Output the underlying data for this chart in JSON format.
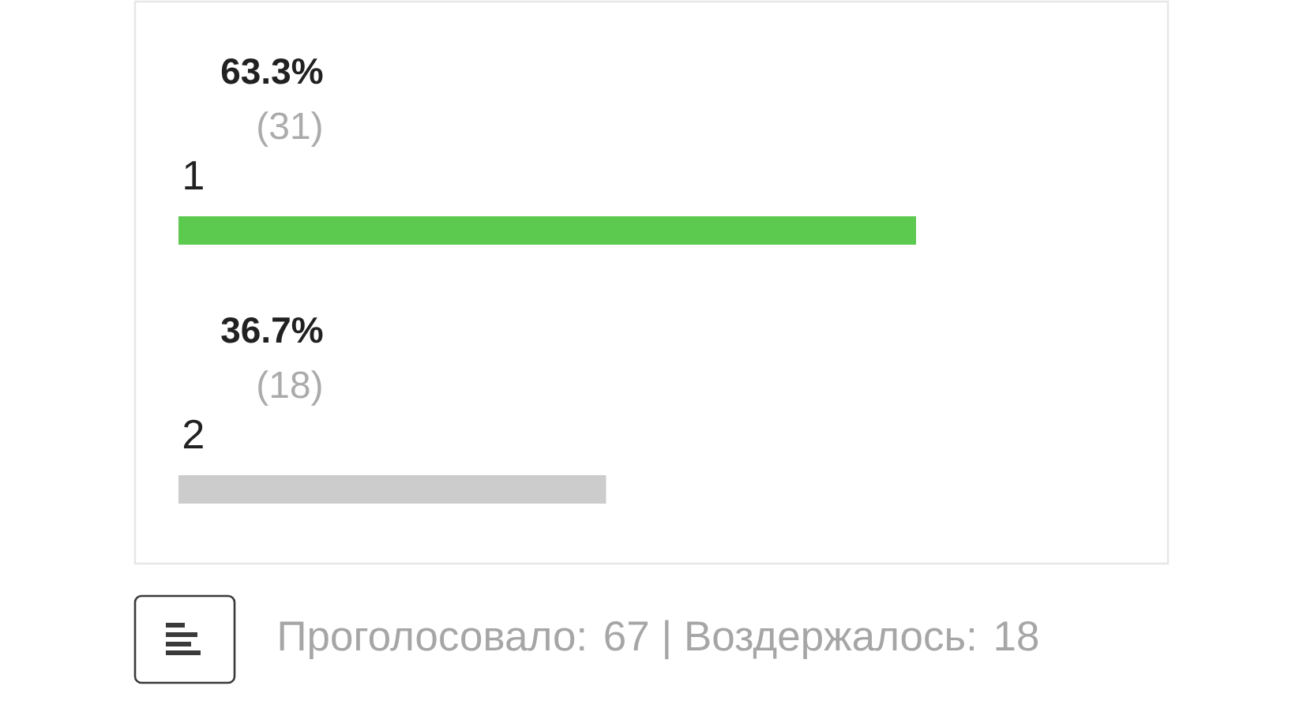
{
  "chart_data": {
    "type": "bar",
    "orientation": "horizontal",
    "categories": [
      "1",
      "2"
    ],
    "values": [
      63.3,
      36.7
    ],
    "colors": [
      "#5cc94f",
      "#cccccc"
    ],
    "value_labels": [
      "63.3%",
      "36.7%"
    ],
    "tick_labels": "y",
    "annotations": [
      "(31)",
      "(18)",
      "Проголосовало: 67 | Воздержалось: 18"
    ]
  }
}
